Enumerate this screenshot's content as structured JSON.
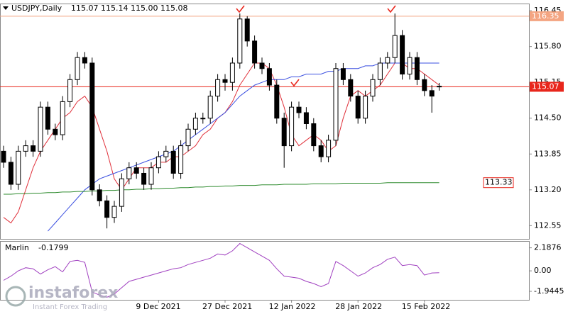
{
  "chart_data": [
    {
      "type": "candlestick",
      "title": "USDJPY,Daily",
      "header": "115.07 115.14 115.00 115.08",
      "categories": [
        null,
        null,
        null,
        null,
        null,
        null,
        null,
        null,
        null,
        null,
        null,
        null,
        null,
        null,
        null,
        null,
        null,
        null,
        null,
        null,
        null,
        "9 Dec 2021",
        null,
        null,
        null,
        null,
        null,
        null,
        null,
        null,
        "27 Dec 2021",
        null,
        null,
        null,
        null,
        null,
        null,
        null,
        null,
        "12 Jan 2022",
        null,
        null,
        null,
        null,
        null,
        null,
        null,
        null,
        "28 Jan 2022",
        null,
        null,
        null,
        null,
        null,
        null,
        null,
        null,
        "15 Feb 2022",
        null,
        null
      ],
      "open": [
        113.9,
        113.7,
        113.3,
        113.9,
        114.0,
        113.9,
        114.7,
        114.3,
        114.2,
        114.8,
        115.2,
        115.6,
        115.5,
        113.2,
        113.0,
        112.7,
        112.9,
        113.4,
        113.6,
        113.5,
        113.3,
        113.6,
        113.8,
        113.9,
        113.5,
        114.0,
        114.3,
        114.5,
        114.5,
        114.9,
        115.2,
        115.15,
        115.5,
        116.3,
        115.9,
        115.5,
        115.4,
        115.1,
        114.5,
        114.0,
        114.7,
        114.6,
        114.4,
        114.0,
        113.8,
        114.1,
        115.4,
        115.2,
        114.9,
        114.5,
        114.9,
        115.2,
        115.5,
        115.6,
        116.0,
        115.3,
        115.6,
        115.2,
        115.0,
        115.07
      ],
      "high": [
        114.0,
        113.8,
        114.0,
        114.1,
        114.1,
        114.8,
        114.8,
        114.4,
        114.9,
        115.3,
        115.7,
        115.7,
        115.6,
        113.3,
        113.1,
        113.0,
        113.5,
        113.7,
        113.7,
        113.6,
        113.7,
        113.9,
        114.0,
        114.0,
        114.1,
        114.4,
        114.6,
        114.6,
        115.0,
        115.3,
        115.3,
        115.6,
        116.4,
        116.35,
        116.0,
        115.6,
        115.5,
        115.2,
        114.6,
        114.8,
        114.8,
        114.7,
        114.5,
        114.1,
        114.2,
        115.5,
        115.5,
        115.3,
        115.0,
        115.0,
        115.3,
        115.6,
        115.7,
        116.4,
        116.1,
        115.7,
        115.7,
        115.3,
        115.1,
        115.14
      ],
      "low": [
        113.6,
        113.2,
        113.2,
        113.8,
        113.8,
        113.8,
        114.2,
        114.1,
        114.1,
        114.7,
        115.1,
        115.4,
        113.1,
        112.9,
        112.5,
        112.6,
        112.8,
        113.3,
        113.4,
        113.2,
        113.2,
        113.5,
        113.7,
        113.4,
        113.4,
        113.9,
        114.2,
        114.4,
        114.4,
        114.8,
        115.0,
        115.0,
        115.4,
        115.8,
        115.4,
        115.3,
        115.0,
        114.4,
        113.6,
        113.9,
        114.5,
        114.3,
        113.9,
        113.7,
        113.7,
        114.0,
        115.1,
        114.8,
        114.4,
        114.4,
        114.8,
        115.1,
        115.4,
        115.5,
        115.2,
        115.2,
        115.1,
        114.9,
        114.6,
        115.0
      ],
      "close": [
        113.7,
        113.3,
        113.9,
        114.0,
        113.9,
        114.7,
        114.3,
        114.2,
        114.8,
        115.2,
        115.6,
        115.5,
        113.2,
        113.0,
        112.7,
        112.9,
        113.4,
        113.6,
        113.5,
        113.3,
        113.6,
        113.8,
        113.9,
        113.5,
        114.0,
        114.3,
        114.5,
        114.5,
        114.9,
        115.2,
        115.15,
        115.5,
        116.3,
        115.9,
        115.5,
        115.4,
        115.1,
        114.5,
        114.0,
        114.7,
        114.6,
        114.4,
        114.0,
        113.8,
        114.1,
        115.4,
        115.2,
        114.9,
        114.5,
        114.9,
        115.2,
        115.5,
        115.6,
        116.0,
        115.3,
        115.6,
        115.2,
        115.0,
        114.9,
        115.08
      ],
      "up_color": "#ffffff",
      "down_color": "#000000",
      "lines": [
        {
          "color": "#e0303a",
          "values": [
            112.7,
            112.6,
            112.8,
            113.2,
            113.6,
            113.9,
            114.1,
            114.3,
            114.5,
            114.6,
            114.8,
            114.9,
            114.7,
            114.3,
            113.9,
            113.4,
            113.2,
            113.4,
            113.6,
            113.6,
            113.6,
            113.7,
            113.7,
            113.8,
            113.8,
            113.9,
            114.0,
            114.2,
            114.3,
            114.5,
            114.6,
            114.8,
            115.1,
            115.3,
            115.5,
            115.5,
            115.4,
            115.1,
            114.7,
            114.2,
            114.0,
            114.1,
            114.2,
            114.1,
            113.9,
            114.0,
            114.5,
            114.9,
            115.0,
            114.9,
            115.0,
            115.1,
            115.3,
            115.5,
            115.5,
            115.4,
            115.4,
            115.3,
            115.2,
            115.1
          ]
        },
        {
          "color": "#3a4fe0",
          "values": [
            null,
            null,
            null,
            null,
            null,
            null,
            112.45,
            112.6,
            112.75,
            112.9,
            113.05,
            113.2,
            113.3,
            113.4,
            113.45,
            113.5,
            113.55,
            113.6,
            113.65,
            113.7,
            113.75,
            113.8,
            113.85,
            113.9,
            114.0,
            114.1,
            114.2,
            114.3,
            114.4,
            114.5,
            114.6,
            114.75,
            114.9,
            115.0,
            115.1,
            115.15,
            115.2,
            115.2,
            115.2,
            115.25,
            115.25,
            115.3,
            115.3,
            115.3,
            115.35,
            115.35,
            115.4,
            115.4,
            115.4,
            115.45,
            115.45,
            115.5,
            115.5,
            115.5,
            115.5,
            115.5,
            115.5,
            115.5,
            115.5,
            115.5
          ]
        },
        {
          "color": "#2e8b2e",
          "values": [
            113.12,
            113.12,
            113.13,
            113.13,
            113.14,
            113.14,
            113.15,
            113.15,
            113.16,
            113.16,
            113.17,
            113.17,
            113.18,
            113.18,
            113.19,
            113.19,
            113.2,
            113.2,
            113.21,
            113.21,
            113.22,
            113.22,
            113.23,
            113.23,
            113.24,
            113.24,
            113.25,
            113.25,
            113.26,
            113.26,
            113.27,
            113.27,
            113.28,
            113.28,
            113.28,
            113.29,
            113.29,
            113.29,
            113.3,
            113.3,
            113.3,
            113.3,
            113.31,
            113.31,
            113.31,
            113.31,
            113.32,
            113.32,
            113.32,
            113.32,
            113.32,
            113.32,
            113.33,
            113.33,
            113.33,
            113.33,
            113.33,
            113.33,
            113.33,
            113.33
          ]
        }
      ],
      "levels": [
        {
          "value": 116.35,
          "color": "#f4a582",
          "label_style": "filled"
        },
        {
          "value": 115.07,
          "color": "#e8261c",
          "label_style": "filled"
        },
        {
          "value": 113.33,
          "color": "#e8261c",
          "label_style": "outlined"
        }
      ],
      "ylim": [
        112.31,
        116.58
      ],
      "yticks": [
        116.45,
        {
          "value": 115.8,
          "label": "115.80"
        },
        {
          "value": 115.15,
          "label": "115.15"
        },
        {
          "value": 114.5,
          "label": "114.50"
        },
        113.85,
        {
          "value": 113.2,
          "label": "113.20"
        },
        112.55
      ],
      "watermark": {
        "brand": "instaforex",
        "tagline": "Instant Forex Trading"
      }
    },
    {
      "type": "line",
      "title": "Marlin",
      "color": "#a040c0",
      "values": [
        -0.9,
        -0.5,
        0.0,
        0.3,
        0.2,
        -0.3,
        0.1,
        0.4,
        -0.1,
        0.9,
        1.0,
        0.8,
        -2.0,
        -2.3,
        -2.5,
        -2.2,
        -1.6,
        -1.0,
        -0.8,
        -0.6,
        -0.4,
        -0.2,
        0.0,
        0.2,
        0.3,
        0.6,
        0.8,
        1.0,
        1.2,
        1.6,
        1.5,
        1.9,
        2.6,
        2.2,
        1.8,
        1.4,
        1.0,
        0.2,
        -0.5,
        -0.6,
        -0.7,
        -1.0,
        -1.2,
        -1.5,
        -1.2,
        0.9,
        0.5,
        0.0,
        -0.5,
        -0.2,
        0.3,
        0.6,
        1.1,
        1.3,
        0.5,
        0.6,
        0.5,
        -0.4,
        -0.2,
        -0.1799
      ],
      "ylim": [
        -2.75,
        2.7
      ],
      "yticks": [
        2.1876,
        {
          "value": 0,
          "label": "0.00"
        },
        -1.9445
      ]
    }
  ]
}
